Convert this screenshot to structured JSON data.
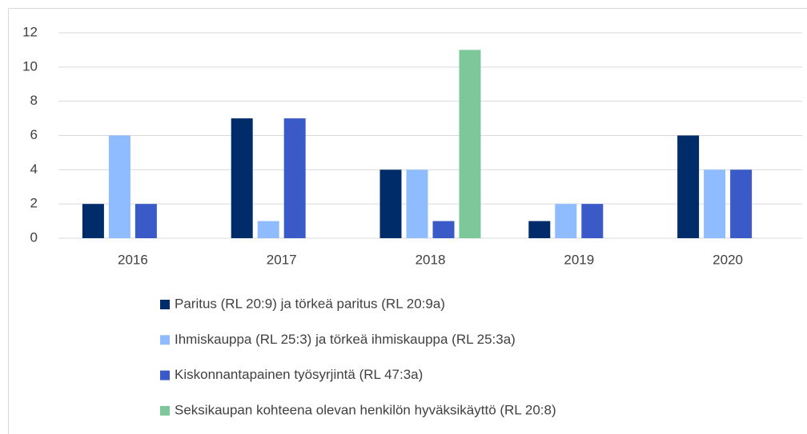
{
  "chart_data": {
    "type": "bar",
    "categories": [
      "2016",
      "2017",
      "2018",
      "2019",
      "2020"
    ],
    "series": [
      {
        "name": "Paritus (RL 20:9) ja törkeä paritus (RL 20:9a)",
        "color": "#002d6a",
        "values": [
          2,
          7,
          4,
          1,
          6
        ]
      },
      {
        "name": "Ihmiskauppa (RL 25:3) ja törkeä ihmiskauppa (RL 25:3a)",
        "color": "#8fbcff",
        "values": [
          6,
          1,
          4,
          2,
          4
        ]
      },
      {
        "name": "Kiskonnantapainen työsyrjintä (RL 47:3a)",
        "color": "#3a5bc7",
        "values": [
          2,
          7,
          1,
          2,
          4
        ]
      },
      {
        "name": "Seksikaupan kohteena olevan henkilön hyväksikäyttö (RL 20:8)",
        "color": "#7dc89a",
        "values": [
          0,
          0,
          11,
          0,
          0
        ]
      }
    ],
    "ylim": [
      0,
      12
    ],
    "yticks": [
      0,
      2,
      4,
      6,
      8,
      10,
      12
    ],
    "grid": true,
    "legend": "bottom"
  }
}
